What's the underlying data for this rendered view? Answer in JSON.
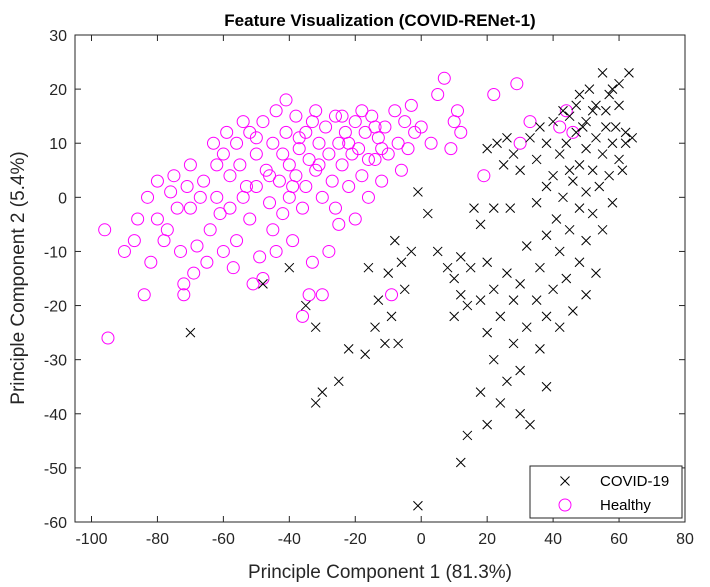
{
  "chart_data": {
    "type": "scatter",
    "title": "Feature Visualization (COVID-RENet-1)",
    "xlabel": "Principle Component 1 (81.3%)",
    "ylabel": "Principle Component 2 (5.4%)",
    "xlim": [
      -105,
      80
    ],
    "ylim": [
      -60,
      30
    ],
    "xticks": [
      -100,
      -80,
      -60,
      -40,
      -20,
      0,
      20,
      40,
      60,
      80
    ],
    "yticks": [
      -60,
      -50,
      -40,
      -30,
      -20,
      -10,
      0,
      10,
      20,
      30
    ],
    "grid": false,
    "legend_position": "bottom-right",
    "series": [
      {
        "name": "COVID-19",
        "marker": "x",
        "color": "#000000",
        "points": [
          [
            55,
            23
          ],
          [
            63,
            23
          ],
          [
            58,
            20
          ],
          [
            48,
            19
          ],
          [
            60,
            17
          ],
          [
            52,
            16
          ],
          [
            45,
            15
          ],
          [
            50,
            14
          ],
          [
            40,
            14
          ],
          [
            56,
            13
          ],
          [
            62,
            12
          ],
          [
            47,
            12
          ],
          [
            53,
            11
          ],
          [
            44,
            10
          ],
          [
            58,
            10
          ],
          [
            38,
            10
          ],
          [
            50,
            9
          ],
          [
            55,
            8
          ],
          [
            42,
            8
          ],
          [
            60,
            7
          ],
          [
            35,
            7
          ],
          [
            48,
            6
          ],
          [
            52,
            5
          ],
          [
            45,
            5
          ],
          [
            57,
            4
          ],
          [
            40,
            4
          ],
          [
            30,
            5
          ],
          [
            25,
            6
          ],
          [
            20,
            9
          ],
          [
            28,
            8
          ],
          [
            46,
            3
          ],
          [
            54,
            2
          ],
          [
            38,
            2
          ],
          [
            50,
            1
          ],
          [
            43,
            0
          ],
          [
            58,
            -1
          ],
          [
            35,
            -1
          ],
          [
            48,
            -2
          ],
          [
            52,
            -3
          ],
          [
            41,
            -4
          ],
          [
            27,
            -2
          ],
          [
            22,
            -2
          ],
          [
            16,
            -2
          ],
          [
            18,
            -5
          ],
          [
            45,
            -6
          ],
          [
            55,
            -6
          ],
          [
            38,
            -7
          ],
          [
            50,
            -8
          ],
          [
            32,
            -9
          ],
          [
            42,
            -10
          ],
          [
            48,
            -12
          ],
          [
            36,
            -13
          ],
          [
            26,
            -14
          ],
          [
            53,
            -14
          ],
          [
            44,
            -15
          ],
          [
            30,
            -16
          ],
          [
            40,
            -17
          ],
          [
            22,
            -17
          ],
          [
            50,
            -18
          ],
          [
            35,
            -19
          ],
          [
            28,
            -19
          ],
          [
            18,
            -19
          ],
          [
            46,
            -21
          ],
          [
            38,
            -22
          ],
          [
            24,
            -22
          ],
          [
            32,
            -24
          ],
          [
            42,
            -24
          ],
          [
            20,
            -25
          ],
          [
            28,
            -27
          ],
          [
            36,
            -28
          ],
          [
            22,
            -30
          ],
          [
            30,
            -32
          ],
          [
            26,
            -34
          ],
          [
            38,
            -35
          ],
          [
            18,
            -36
          ],
          [
            24,
            -38
          ],
          [
            30,
            -40
          ],
          [
            20,
            -42
          ],
          [
            33,
            -42
          ],
          [
            14,
            -44
          ],
          [
            12,
            -49
          ],
          [
            -1,
            -57
          ],
          [
            -8,
            -8
          ],
          [
            -6,
            -12
          ],
          [
            -10,
            -14
          ],
          [
            -5,
            -17
          ],
          [
            -13,
            -19
          ],
          [
            -16,
            -13
          ],
          [
            -9,
            -22
          ],
          [
            -14,
            -24
          ],
          [
            -11,
            -27
          ],
          [
            -17,
            -29
          ],
          [
            -7,
            -27
          ],
          [
            -22,
            -28
          ],
          [
            -25,
            -34
          ],
          [
            -30,
            -36
          ],
          [
            -32,
            -38
          ],
          [
            -32,
            -24
          ],
          [
            -35,
            -20
          ],
          [
            -40,
            -13
          ],
          [
            -48,
            -16
          ],
          [
            -70,
            -25
          ],
          [
            -3,
            -10
          ],
          [
            -1,
            1
          ],
          [
            2,
            -3
          ],
          [
            5,
            -10
          ],
          [
            8,
            -13
          ],
          [
            10,
            -15
          ],
          [
            12,
            -11
          ],
          [
            15,
            -13
          ],
          [
            12,
            -18
          ],
          [
            14,
            -20
          ],
          [
            10,
            -22
          ],
          [
            20,
            -12
          ],
          [
            26,
            11
          ],
          [
            23,
            10
          ],
          [
            33,
            11
          ],
          [
            36,
            13
          ],
          [
            62,
            10
          ],
          [
            61,
            5
          ],
          [
            64,
            11
          ],
          [
            59,
            13
          ],
          [
            56,
            16
          ],
          [
            51,
            20
          ],
          [
            47,
            17
          ],
          [
            43,
            16
          ],
          [
            60,
            21
          ],
          [
            57,
            19
          ],
          [
            53,
            17
          ],
          [
            49,
            13
          ]
        ]
      },
      {
        "name": "Healthy",
        "marker": "o",
        "color": "#ff00ff",
        "points": [
          [
            -96,
            -6
          ],
          [
            -95,
            -26
          ],
          [
            -87,
            -8
          ],
          [
            -84,
            -18
          ],
          [
            -82,
            -12
          ],
          [
            -80,
            -4
          ],
          [
            -78,
            -8
          ],
          [
            -76,
            1
          ],
          [
            -74,
            -2
          ],
          [
            -72,
            -18
          ],
          [
            -72,
            -16
          ],
          [
            -70,
            6
          ],
          [
            -70,
            -2
          ],
          [
            -68,
            -9
          ],
          [
            -66,
            3
          ],
          [
            -65,
            -12
          ],
          [
            -64,
            -6
          ],
          [
            -62,
            6
          ],
          [
            -62,
            0
          ],
          [
            -60,
            8
          ],
          [
            -60,
            -10
          ],
          [
            -58,
            4
          ],
          [
            -58,
            -2
          ],
          [
            -56,
            10
          ],
          [
            -56,
            -8
          ],
          [
            -55,
            6
          ],
          [
            -54,
            0
          ],
          [
            -52,
            12
          ],
          [
            -52,
            -4
          ],
          [
            -50,
            8
          ],
          [
            -50,
            2
          ],
          [
            -49,
            -11
          ],
          [
            -48,
            14
          ],
          [
            -48,
            -15
          ],
          [
            -47,
            5
          ],
          [
            -46,
            -1
          ],
          [
            -45,
            10
          ],
          [
            -45,
            -6
          ],
          [
            -44,
            16
          ],
          [
            -43,
            3
          ],
          [
            -42,
            8
          ],
          [
            -42,
            -3
          ],
          [
            -41,
            12
          ],
          [
            -40,
            0
          ],
          [
            -40,
            6
          ],
          [
            -39,
            -8
          ],
          [
            -38,
            15
          ],
          [
            -38,
            4
          ],
          [
            -37,
            9
          ],
          [
            -36,
            -2
          ],
          [
            -35,
            12
          ],
          [
            -35,
            2
          ],
          [
            -34,
            7
          ],
          [
            -33,
            -12
          ],
          [
            -32,
            16
          ],
          [
            -32,
            5
          ],
          [
            -31,
            10
          ],
          [
            -30,
            0
          ],
          [
            -30,
            -18
          ],
          [
            -29,
            13
          ],
          [
            -28,
            8
          ],
          [
            -27,
            3
          ],
          [
            -26,
            15
          ],
          [
            -25,
            10
          ],
          [
            -25,
            -5
          ],
          [
            -24,
            6
          ],
          [
            -23,
            12
          ],
          [
            -22,
            2
          ],
          [
            -21,
            8
          ],
          [
            -20,
            -4
          ],
          [
            -20,
            14
          ],
          [
            -19,
            9
          ],
          [
            -18,
            4
          ],
          [
            -17,
            12
          ],
          [
            -16,
            0
          ],
          [
            -15,
            15
          ],
          [
            -14,
            7
          ],
          [
            -13,
            11
          ],
          [
            -12,
            3
          ],
          [
            -11,
            13
          ],
          [
            -10,
            8
          ],
          [
            -9,
            -18
          ],
          [
            -8,
            16
          ],
          [
            -7,
            10
          ],
          [
            -6,
            5
          ],
          [
            -5,
            14
          ],
          [
            -4,
            9
          ],
          [
            -3,
            17
          ],
          [
            -2,
            12
          ],
          [
            0,
            13
          ],
          [
            3,
            10
          ],
          [
            5,
            19
          ],
          [
            7,
            22
          ],
          [
            9,
            9
          ],
          [
            10,
            14
          ],
          [
            11,
            16
          ],
          [
            12,
            12
          ],
          [
            -90,
            -10
          ],
          [
            -86,
            -4
          ],
          [
            -83,
            0
          ],
          [
            -80,
            3
          ],
          [
            -77,
            -6
          ],
          [
            -75,
            4
          ],
          [
            -73,
            -10
          ],
          [
            -71,
            2
          ],
          [
            -69,
            -14
          ],
          [
            -67,
            0
          ],
          [
            -63,
            10
          ],
          [
            -61,
            -3
          ],
          [
            -59,
            12
          ],
          [
            -57,
            -13
          ],
          [
            -53,
            2
          ],
          [
            -51,
            -16
          ],
          [
            -46,
            4
          ],
          [
            -44,
            -10
          ],
          [
            -39,
            2
          ],
          [
            -36,
            -22
          ],
          [
            -34,
            -18
          ],
          [
            -31,
            6
          ],
          [
            -28,
            -10
          ],
          [
            -26,
            -2
          ],
          [
            -24,
            15
          ],
          [
            -22,
            10
          ],
          [
            -18,
            16
          ],
          [
            -16,
            7
          ],
          [
            -14,
            13
          ],
          [
            -12,
            9
          ],
          [
            19,
            4
          ],
          [
            22,
            19
          ],
          [
            29,
            21
          ],
          [
            30,
            10
          ],
          [
            33,
            14
          ],
          [
            42,
            13
          ],
          [
            44,
            16
          ],
          [
            46,
            12
          ],
          [
            -54,
            14
          ],
          [
            -50,
            11
          ],
          [
            -41,
            18
          ],
          [
            -37,
            11
          ],
          [
            -33,
            14
          ]
        ]
      }
    ]
  }
}
